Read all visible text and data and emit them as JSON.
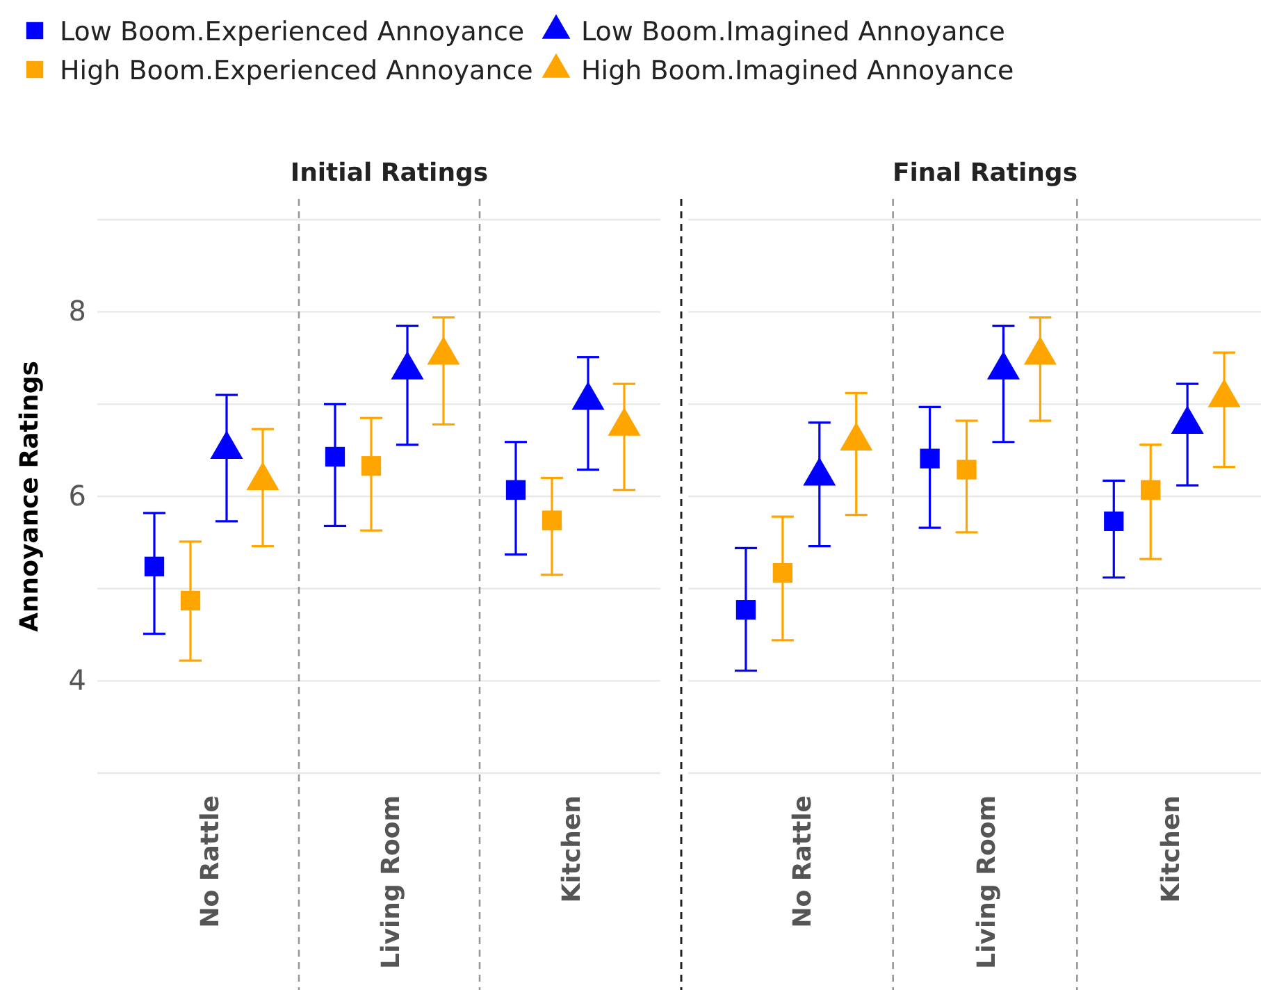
{
  "chart_data": [
    {
      "type": "scatter",
      "title": "Initial Ratings",
      "ylabel": "Annoyance Ratings",
      "categories": [
        "No Rattle",
        "Living Room",
        "Kitchen"
      ],
      "ylim": [
        3,
        9
      ],
      "yticks": [
        {
          "value": 3,
          "label": null
        },
        4,
        {
          "value": 5,
          "label": null
        },
        6,
        {
          "value": 7,
          "label": null
        },
        8,
        {
          "value": 9,
          "label": null
        }
      ],
      "grid": "y",
      "legend": "top",
      "series": [
        {
          "name": "Low Boom.Experienced Annoyance",
          "color": "#0000ff",
          "marker": "square",
          "values": [
            5.24,
            6.43,
            6.07
          ],
          "errors": [
            [
              4.51,
              5.82
            ],
            [
              5.68,
              7.0
            ],
            [
              5.37,
              6.59
            ]
          ]
        },
        {
          "name": "High Boom.Experienced Annoyance",
          "color": "#ffa500",
          "marker": "square",
          "values": [
            4.87,
            6.33,
            5.74
          ],
          "errors": [
            [
              4.22,
              5.51
            ],
            [
              5.63,
              6.85
            ],
            [
              5.15,
              6.2
            ]
          ]
        },
        {
          "name": "Low Boom.Imagined Annoyance",
          "color": "#0000ff",
          "marker": "triangle",
          "values": [
            6.51,
            7.37,
            7.04
          ],
          "errors": [
            [
              5.73,
              7.1
            ],
            [
              6.56,
              7.85
            ],
            [
              6.29,
              7.51
            ]
          ]
        },
        {
          "name": "High Boom.Imagined Annoyance",
          "color": "#ffa500",
          "marker": "triangle",
          "values": [
            6.17,
            7.53,
            6.76
          ],
          "errors": [
            [
              5.46,
              6.73
            ],
            [
              6.78,
              7.94
            ],
            [
              6.07,
              7.22
            ]
          ]
        }
      ]
    },
    {
      "type": "scatter",
      "title": "Final Ratings",
      "categories": [
        "No Rattle",
        "Living Room",
        "Kitchen"
      ],
      "ylim": [
        3,
        9
      ],
      "yticks": [
        {
          "value": 3,
          "label": null
        },
        4,
        {
          "value": 5,
          "label": null
        },
        6,
        {
          "value": 7,
          "label": null
        },
        8,
        {
          "value": 9,
          "label": null
        }
      ],
      "grid": "y",
      "tick_labels": "x",
      "series": [
        {
          "color": "#0000ff",
          "marker": "square",
          "values": [
            4.77,
            6.41,
            5.73
          ],
          "errors": [
            [
              4.11,
              5.44
            ],
            [
              5.66,
              6.97
            ],
            [
              5.12,
              6.17
            ]
          ]
        },
        {
          "color": "#ffa500",
          "marker": "square",
          "values": [
            5.17,
            6.29,
            6.07
          ],
          "errors": [
            [
              4.44,
              5.78
            ],
            [
              5.61,
              6.82
            ],
            [
              5.32,
              6.56
            ]
          ]
        },
        {
          "color": "#0000ff",
          "marker": "triangle",
          "values": [
            6.22,
            7.37,
            6.78
          ],
          "errors": [
            [
              5.46,
              6.8
            ],
            [
              6.59,
              7.85
            ],
            [
              6.12,
              7.22
            ]
          ]
        },
        {
          "color": "#ffa500",
          "marker": "triangle",
          "values": [
            6.6,
            7.53,
            7.07
          ],
          "errors": [
            [
              5.8,
              7.12
            ],
            [
              6.82,
              7.94
            ],
            [
              6.32,
              7.56
            ]
          ]
        }
      ]
    }
  ]
}
